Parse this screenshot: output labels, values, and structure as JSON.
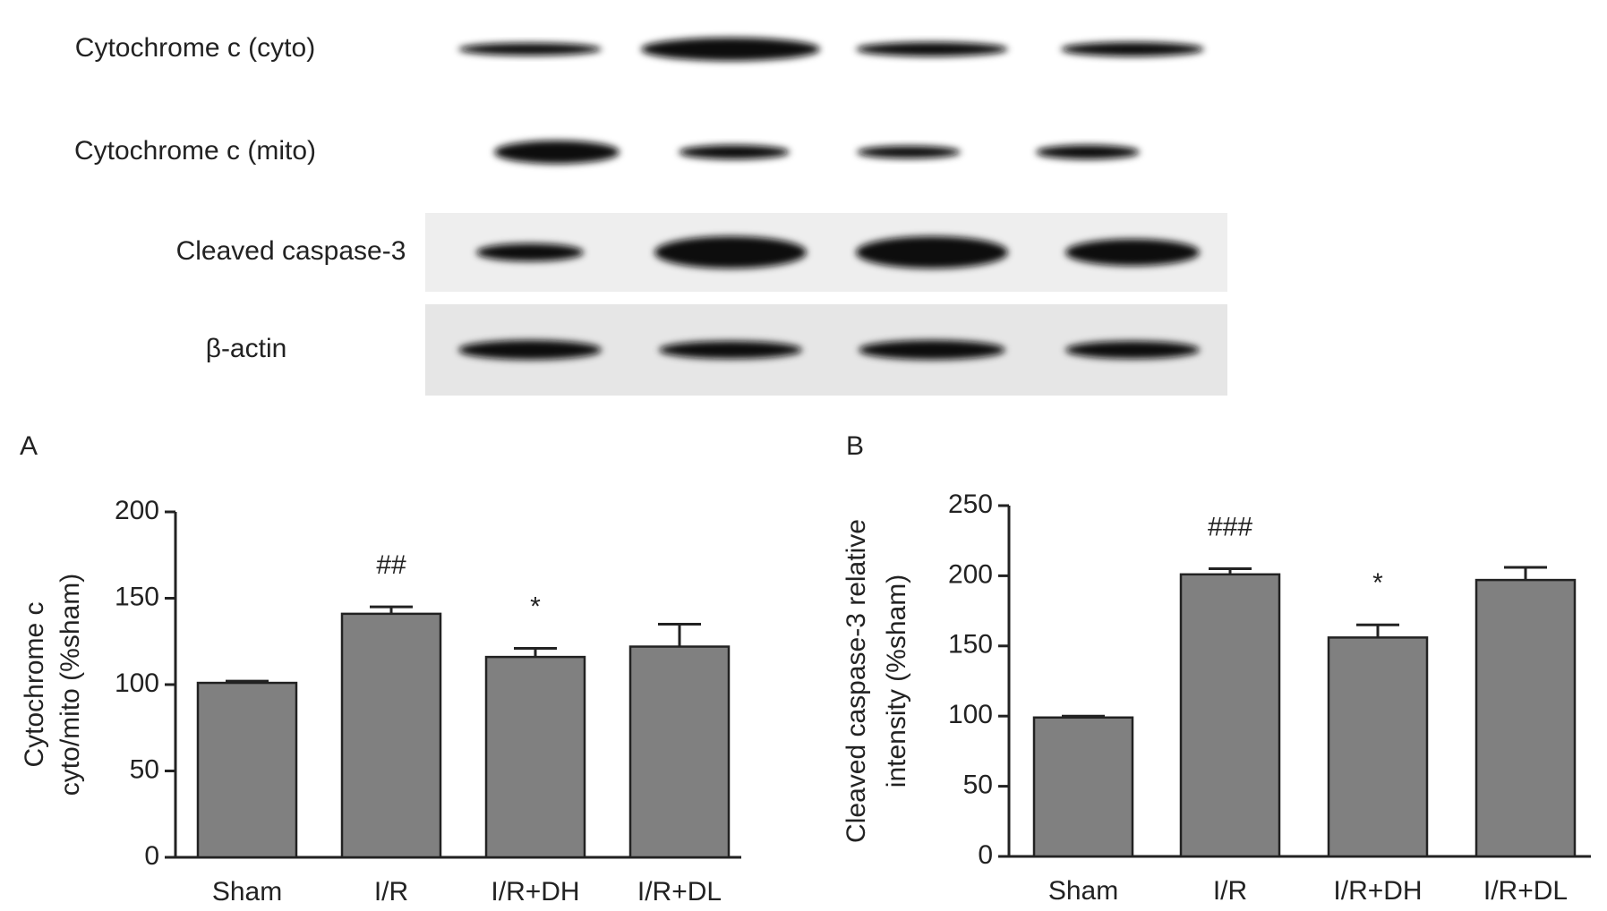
{
  "blot": {
    "rows": [
      "Cytochrome c (cyto)",
      "Cytochrome c (mito)",
      "Cleaved caspase-3",
      "β-actin"
    ]
  },
  "chart_data": [
    {
      "type": "bar",
      "panel": "A",
      "ylabel": [
        "Cytochrome c",
        "cyto/mito (%sham)"
      ],
      "categories": [
        "Sham",
        "I/R",
        "I/R+DH",
        "I/R+DL"
      ],
      "values": [
        101,
        141,
        116,
        122
      ],
      "errors": [
        1,
        4,
        5,
        13
      ],
      "bar_labels": [
        null,
        "##",
        "*",
        null
      ],
      "color": "#808080",
      "ylim": [
        0,
        200
      ],
      "yticks": [
        0,
        50,
        100,
        150,
        200
      ]
    },
    {
      "type": "bar",
      "panel": "B",
      "ylabel": [
        "Cleaved caspase-3 relative",
        "intensity (%sham)"
      ],
      "categories": [
        "Sham",
        "I/R",
        "I/R+DH",
        "I/R+DL"
      ],
      "values": [
        99,
        201,
        156,
        197
      ],
      "errors": [
        1,
        4,
        9,
        9
      ],
      "bar_labels": [
        null,
        "###",
        "*",
        null
      ],
      "color": "#808080",
      "ylim": [
        0,
        250
      ],
      "yticks": [
        0,
        50,
        100,
        150,
        200,
        250
      ]
    }
  ]
}
